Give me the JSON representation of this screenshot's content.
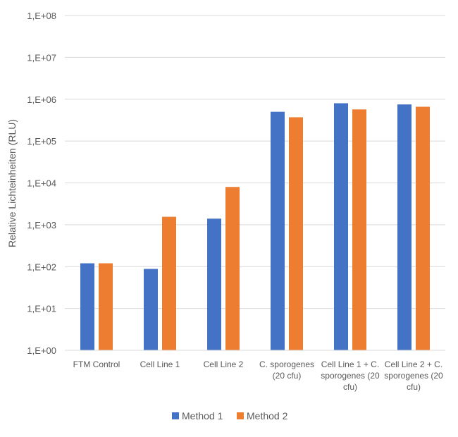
{
  "chart_data": {
    "type": "bar",
    "title": "",
    "xlabel": "",
    "ylabel": "Relative Lichteinheiten (RLU)",
    "yscale": "log",
    "ylim": [
      1,
      100000000
    ],
    "grid": true,
    "legend_position": "bottom",
    "yticks": [
      {
        "value": 1,
        "label": "1,E+00"
      },
      {
        "value": 10,
        "label": "1,E+01"
      },
      {
        "value": 100,
        "label": "1,E+02"
      },
      {
        "value": 1000,
        "label": "1,E+03"
      },
      {
        "value": 10000,
        "label": "1,E+04"
      },
      {
        "value": 100000,
        "label": "1,E+05"
      },
      {
        "value": 1000000,
        "label": "1,E+06"
      },
      {
        "value": 10000000,
        "label": "1,E+07"
      },
      {
        "value": 100000000,
        "label": "1,E+08"
      }
    ],
    "categories": [
      [
        "FTM Control"
      ],
      [
        "Cell Line 1"
      ],
      [
        "Cell Line 2"
      ],
      [
        "C. sporogenes",
        "(20 cfu)"
      ],
      [
        "Cell Line 1 + C.",
        "sporogenes (20",
        "cfu)"
      ],
      [
        "Cell Line 2 + C.",
        "sporogenes (20",
        "cfu)"
      ]
    ],
    "series": [
      {
        "name": "Method 1",
        "color": "#4472C4",
        "values": [
          120,
          88,
          1400,
          500000,
          800000,
          750000
        ]
      },
      {
        "name": "Method 2",
        "color": "#ED7D31",
        "values": [
          120,
          1550,
          8000,
          370000,
          570000,
          660000
        ]
      }
    ]
  }
}
